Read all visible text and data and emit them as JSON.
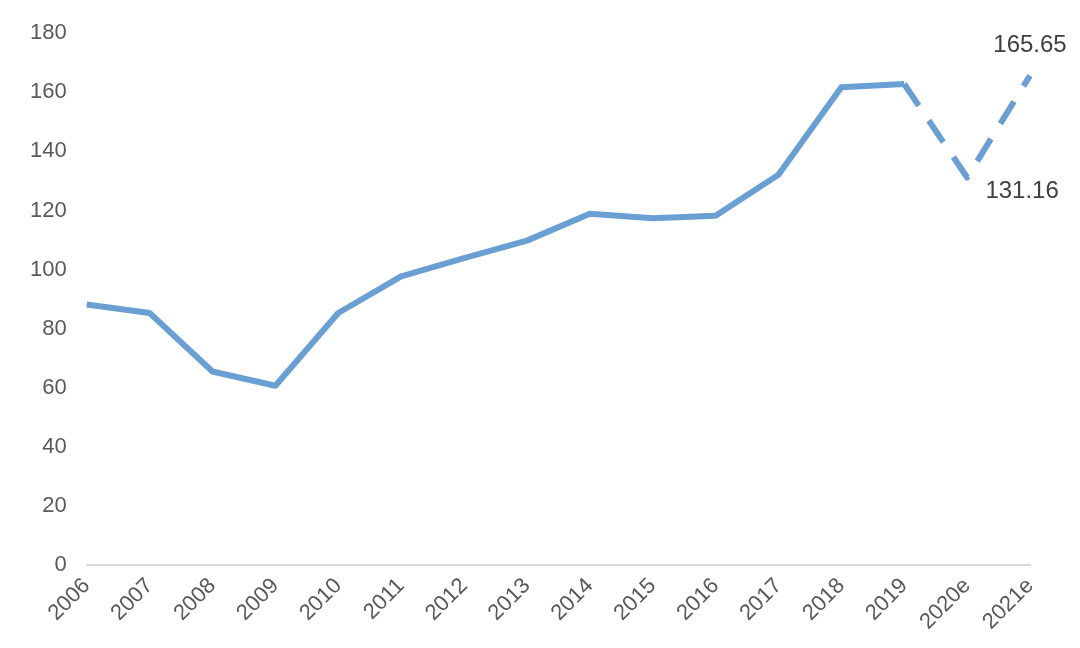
{
  "chart_data": {
    "type": "line",
    "categories": [
      "2006",
      "2007",
      "2008",
      "2009",
      "2010",
      "2011",
      "2012",
      "2013",
      "2014",
      "2015",
      "2016",
      "2017",
      "2018",
      "2019",
      "2020e",
      "2021e"
    ],
    "series": [
      {
        "color": "#6a9fd3",
        "line_style": "solid",
        "values": [
          88.2,
          85.3,
          65.5,
          60.7,
          85.3,
          97.7,
          103.9,
          109.8,
          118.9,
          117.4,
          118.2,
          132.1,
          161.7,
          162.8,
          null,
          null
        ]
      },
      {
        "color": "#6a9fd3",
        "line_style": "dashed",
        "values": [
          null,
          null,
          null,
          null,
          null,
          null,
          null,
          null,
          null,
          null,
          null,
          null,
          null,
          162.8,
          131.16,
          165.65
        ],
        "value_labels": [
          null,
          null,
          null,
          null,
          null,
          null,
          null,
          null,
          null,
          null,
          null,
          null,
          null,
          null,
          "131.16",
          "165.65"
        ]
      }
    ],
    "ylim": [
      0,
      180
    ],
    "yticks": [
      0,
      20,
      40,
      60,
      80,
      100,
      120,
      140,
      160,
      180
    ],
    "grid": false,
    "legend": false,
    "marker": "none"
  }
}
